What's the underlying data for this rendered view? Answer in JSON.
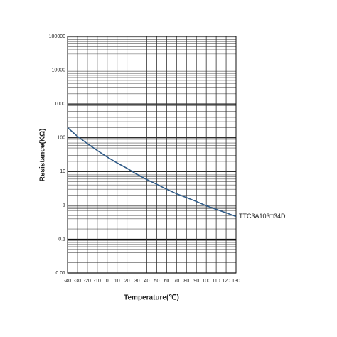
{
  "chart_data": {
    "type": "line",
    "x_label": "Temperature(℃)",
    "y_label": "Resistance(KΩ)",
    "x": [
      -40,
      -30,
      -20,
      -10,
      0,
      10,
      20,
      30,
      40,
      50,
      60,
      70,
      80,
      90,
      100,
      110,
      120,
      130
    ],
    "series": [
      {
        "name": "TTC3A103□34D",
        "color": "#2e5a87",
        "values": [
          200,
          110,
          67,
          42,
          27,
          18,
          12.5,
          8.3,
          5.8,
          4.2,
          3.0,
          2.2,
          1.7,
          1.3,
          0.97,
          0.76,
          0.6,
          0.47
        ]
      }
    ],
    "xlim": [
      -40,
      130
    ],
    "xticks": [
      -40,
      -30,
      -20,
      -10,
      0,
      10,
      20,
      30,
      40,
      50,
      60,
      70,
      80,
      90,
      100,
      110,
      120,
      130
    ],
    "ylim": [
      0.01,
      100000
    ],
    "yticks": [
      0.01,
      0.1,
      1,
      10,
      100,
      1000,
      10000,
      100000
    ],
    "log_y": true,
    "grid": true
  }
}
